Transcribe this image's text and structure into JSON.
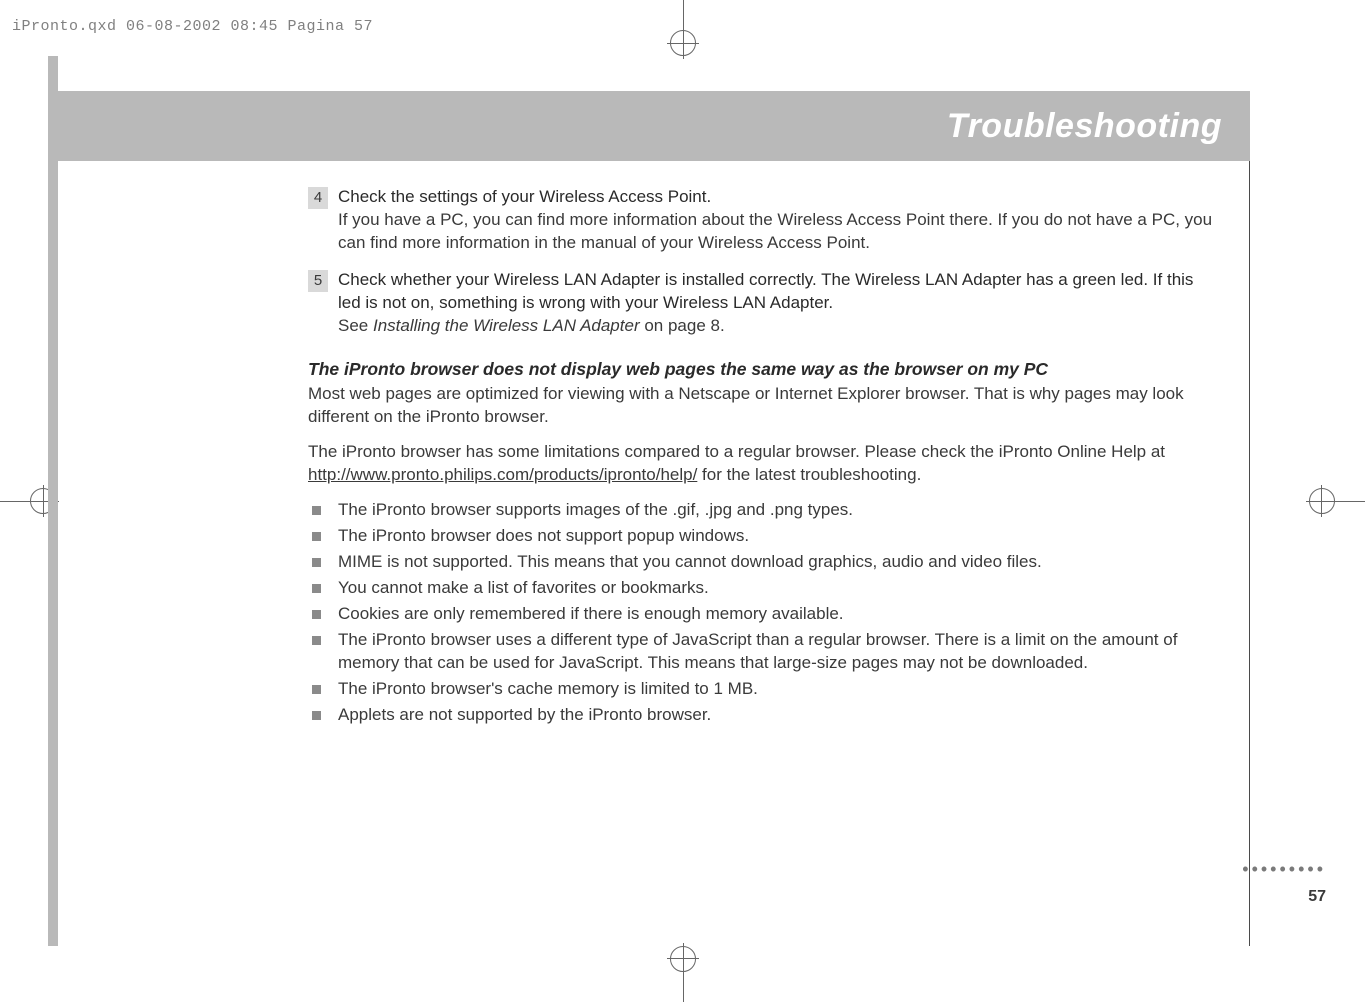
{
  "print_header": "iPronto.qxd  06-08-2002  08:45  Pagina 57",
  "title": "Troubleshooting",
  "steps": [
    {
      "num": "4",
      "title": "Check the settings of your Wireless Access Point.",
      "text": "If you have a PC, you can find more information about the Wireless Access Point there. If you do not have a PC, you can find more information in the manual of your Wireless Access Point."
    },
    {
      "num": "5",
      "title": "Check whether your Wireless LAN Adapter is installed correctly. The Wireless LAN Adapter has a green led. If this led is not on, something is wrong with your Wireless LAN Adapter.",
      "see_prefix": "See ",
      "see_italic": "Installing the Wireless LAN Adapter",
      "see_suffix": " on page 8."
    }
  ],
  "subhead": "The iPronto browser does not display web pages the same way as the browser on my PC",
  "para1": "Most web pages are optimized for viewing with a Netscape or Internet Explorer browser. That is why pages may look different on the iPronto browser.",
  "para2_prefix": "The iPronto browser has some limitations compared to a regular browser. Please check the iPronto Online Help at ",
  "para2_link": "http://www.pronto.philips.com/products/ipronto/help/",
  "para2_suffix": " for the latest troubleshooting.",
  "bullets": [
    "The iPronto browser supports images of the .gif, .jpg and .png types.",
    "The iPronto browser does not support popup windows.",
    "MIME is not supported. This means that you cannot download graphics, audio and video files.",
    "You cannot make a list of favorites or bookmarks.",
    "Cookies are only remembered if there is enough memory available.",
    "The iPronto browser uses a different type of JavaScript than a regular browser. There is a limit on the amount of memory that can be used for JavaScript. This means that large-size pages may not be downloaded.",
    "The iPronto browser's cache memory is limited to 1 MB.",
    "Applets are not supported by the iPronto browser."
  ],
  "page_number": "57",
  "colors": {
    "band_bg": "#b9b9b9",
    "title_color": "#ffffff",
    "text_color": "#3a3a3a"
  }
}
